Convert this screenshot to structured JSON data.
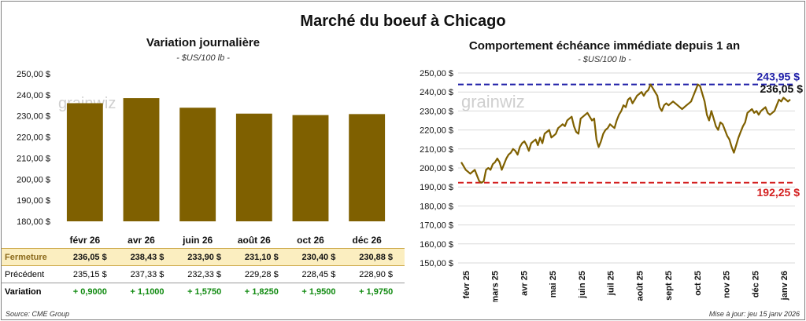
{
  "title": "Marché du boeuf à Chicago",
  "footer": {
    "source": "Source: CME Group",
    "updated": "Mise à jour: jeu 15 janv 2026"
  },
  "watermark": "grainwiz",
  "left_chart": {
    "subtitle": "Variation journalière",
    "unit": "- $US/100 lb -"
  },
  "right_chart": {
    "subtitle": "Comportement échéance immédiate depuis 1 an",
    "unit": "- $US/100 lb -"
  },
  "table": {
    "rows": [
      {
        "label": "Fermeture",
        "values": [
          "236,05  $",
          "238,43  $",
          "233,90  $",
          "231,10  $",
          "230,40  $",
          "230,88  $"
        ]
      },
      {
        "label": "Précédent",
        "values": [
          "235,15  $",
          "237,33  $",
          "232,33  $",
          "229,28  $",
          "228,45  $",
          "228,90  $"
        ]
      },
      {
        "label": "Variation",
        "values": [
          "+ 0,9000",
          "+ 1,1000",
          "+ 1,5750",
          "+ 1,8250",
          "+ 1,9500",
          "+ 1,9750"
        ]
      }
    ]
  },
  "chart_data": [
    {
      "type": "bar",
      "title": "Variation journalière",
      "subtitle": "- $US/100 lb -",
      "categories": [
        "févr 26",
        "avr 26",
        "juin 26",
        "août 26",
        "oct 26",
        "déc 26"
      ],
      "values": [
        236.05,
        238.43,
        233.9,
        231.1,
        230.4,
        230.88
      ],
      "ylim": [
        180,
        250
      ],
      "yticks": [
        "250,00 $",
        "240,00 $",
        "230,00 $",
        "220,00 $",
        "210,00 $",
        "200,00 $",
        "190,00 $",
        "180,00 $"
      ],
      "color": "#7f6000",
      "grid": false
    },
    {
      "type": "line",
      "title": "Comportement échéance immédiate depuis 1 an",
      "subtitle": "- $US/100 lb -",
      "xticks": [
        "févr 25",
        "mars 25",
        "avr 25",
        "mai 25",
        "juin 25",
        "juil 25",
        "août 25",
        "sept 25",
        "oct 25",
        "nov 25",
        "déc 25",
        "janv 26"
      ],
      "yticks": [
        "250,00 $",
        "240,00 $",
        "230,00 $",
        "220,00 $",
        "210,00 $",
        "200,00 $",
        "190,00 $",
        "180,00 $",
        "170,00 $",
        "160,00 $",
        "150,00 $"
      ],
      "ylim": [
        150,
        250
      ],
      "color": "#7f6000",
      "grid": true,
      "values": [
        203,
        201,
        199,
        198,
        197,
        198,
        199,
        196,
        193,
        192.25,
        193,
        199,
        200,
        199,
        202,
        203,
        205,
        203,
        199,
        202,
        205,
        207,
        208,
        210,
        209,
        207,
        211,
        213,
        214,
        212,
        209,
        213,
        214,
        215,
        212,
        216,
        213,
        218,
        219,
        220,
        216,
        217,
        218,
        221,
        222,
        223,
        222,
        225,
        226,
        227,
        222,
        219,
        218,
        226,
        227,
        228,
        229,
        227,
        225,
        226,
        215,
        211,
        214,
        218,
        220,
        221,
        223,
        222,
        221,
        225,
        228,
        230,
        233,
        232,
        236,
        237,
        234,
        236,
        238,
        239,
        240,
        238,
        240,
        241,
        243.95,
        242,
        240,
        238,
        232,
        230,
        233,
        234,
        233,
        234,
        235,
        234,
        233,
        232,
        231,
        232,
        233,
        234,
        235,
        238,
        241,
        243.95,
        243,
        239,
        235,
        228,
        225,
        230,
        226,
        222,
        220,
        224,
        223,
        220,
        217,
        215,
        211,
        208,
        212,
        216,
        219,
        222,
        224,
        229,
        230,
        231,
        229,
        230,
        228,
        230,
        231,
        232,
        229,
        228,
        229,
        230,
        233,
        236,
        235,
        237,
        236,
        235,
        236.05
      ],
      "reference_lines": [
        {
          "label": "243,95 $",
          "value": 243.95,
          "color": "#1f1fa8"
        },
        {
          "label": "192,25 $",
          "value": 192.25,
          "color": "#d42020"
        }
      ],
      "last_label": "236,05 $"
    }
  ]
}
